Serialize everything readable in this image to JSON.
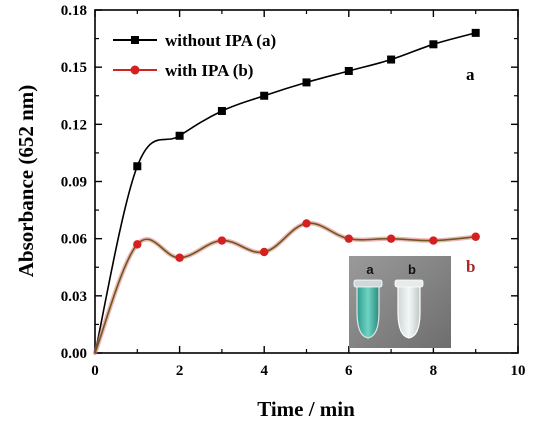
{
  "chart_data": {
    "type": "line",
    "xlabel": "Time / min",
    "ylabel": "Absorbance (652 nm)",
    "xlim": [
      0,
      10
    ],
    "ylim": [
      0,
      0.18
    ],
    "xticks": [
      "0",
      "2",
      "4",
      "6",
      "8",
      "10"
    ],
    "yticks": [
      "0.00",
      "0.03",
      "0.06",
      "0.09",
      "0.12",
      "0.15",
      "0.18"
    ],
    "grid": false,
    "legend_position": "top-left",
    "series": [
      {
        "name": "without IPA (a)",
        "curve_label": "a",
        "color": "#000000",
        "marker": "square",
        "x": [
          1,
          2,
          3,
          4,
          5,
          6,
          7,
          8,
          9
        ],
        "y": [
          0.098,
          0.114,
          0.127,
          0.135,
          0.142,
          0.148,
          0.154,
          0.162,
          0.168
        ]
      },
      {
        "name": "with IPA (b)",
        "curve_label": "b",
        "color": "#d42020",
        "marker": "circle",
        "x": [
          1,
          2,
          3,
          4,
          5,
          6,
          7,
          8,
          9
        ],
        "y": [
          0.057,
          0.05,
          0.059,
          0.053,
          0.068,
          0.06,
          0.06,
          0.059,
          0.061
        ]
      }
    ],
    "inset": {
      "labels": [
        "a",
        "b"
      ]
    }
  }
}
